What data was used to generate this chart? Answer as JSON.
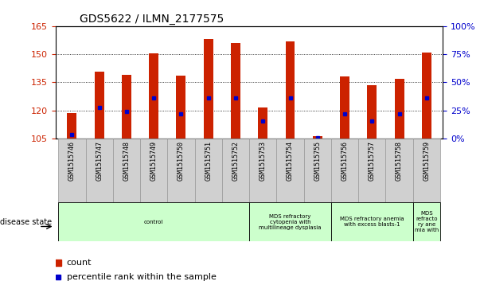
{
  "title": "GDS5622 / ILMN_2177575",
  "samples": [
    "GSM1515746",
    "GSM1515747",
    "GSM1515748",
    "GSM1515749",
    "GSM1515750",
    "GSM1515751",
    "GSM1515752",
    "GSM1515753",
    "GSM1515754",
    "GSM1515755",
    "GSM1515756",
    "GSM1515757",
    "GSM1515758",
    "GSM1515759"
  ],
  "counts": [
    118.5,
    140.5,
    139.0,
    150.5,
    138.5,
    158.0,
    156.0,
    121.5,
    157.0,
    106.5,
    138.0,
    133.5,
    137.0,
    151.0
  ],
  "percentiles": [
    4,
    28,
    24,
    36,
    22,
    36,
    36,
    16,
    36,
    1,
    22,
    16,
    22,
    36
  ],
  "ymin": 105,
  "ymax": 165,
  "yright_min": 0,
  "yright_max": 100,
  "yticks_left": [
    105,
    120,
    135,
    150,
    165
  ],
  "yticks_right": [
    0,
    25,
    50,
    75,
    100
  ],
  "bar_color": "#cc2200",
  "blue_color": "#0000cc",
  "disease_groups": [
    {
      "label": "control",
      "start": 0,
      "end": 7
    },
    {
      "label": "MDS refractory\ncytopenia with\nmultilineage dysplasia",
      "start": 7,
      "end": 10
    },
    {
      "label": "MDS refractory anemia\nwith excess blasts-1",
      "start": 10,
      "end": 13
    },
    {
      "label": "MDS\nrefracto\nry ane\nmia with",
      "start": 13,
      "end": 14
    }
  ],
  "disease_state_label": "disease state",
  "legend_count": "count",
  "legend_percentile": "percentile rank within the sample",
  "bg_disease": "#ccffcc",
  "bg_xtick": "#d0d0d0",
  "axis_color_left": "#cc2200",
  "axis_color_right": "#0000cc",
  "bar_width": 0.35,
  "figsize": [
    6.08,
    3.63
  ],
  "dpi": 100
}
